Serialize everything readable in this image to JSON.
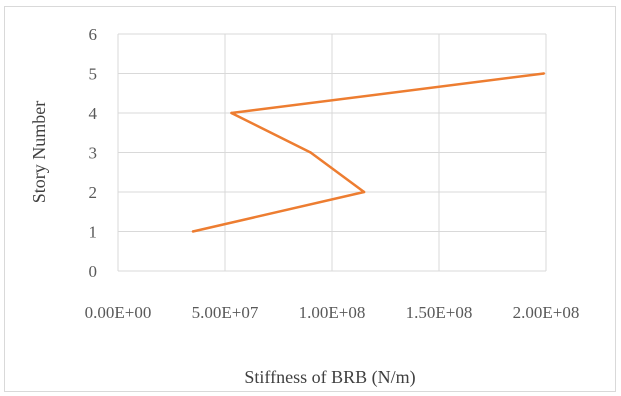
{
  "chart_data": {
    "type": "line",
    "title": "",
    "xlabel": "Stiffness of BRB (N/m)",
    "ylabel": "Story Number",
    "xlim": [
      0,
      200000000
    ],
    "ylim": [
      0,
      6
    ],
    "x_ticks": [
      "0.00E+00",
      "5.00E+07",
      "1.00E+08",
      "1.50E+08",
      "2.00E+08"
    ],
    "y_ticks": [
      "0",
      "1",
      "2",
      "3",
      "4",
      "5",
      "6"
    ],
    "grid": "both",
    "legend": "none",
    "series": [
      {
        "color": "#ed7d31",
        "points": [
          {
            "x": 35000000,
            "y": 1
          },
          {
            "x": 115000000,
            "y": 2
          },
          {
            "x": 90000000,
            "y": 3
          },
          {
            "x": 53000000,
            "y": 4
          },
          {
            "x": 199000000,
            "y": 5
          }
        ]
      }
    ]
  }
}
